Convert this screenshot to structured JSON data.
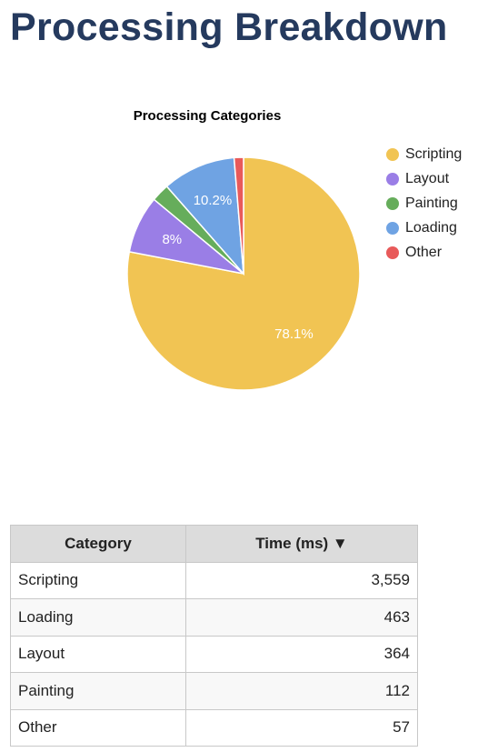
{
  "header": {
    "title": "Processing Breakdown"
  },
  "chart_data": {
    "type": "pie",
    "title": "Processing Categories",
    "categories": [
      "Scripting",
      "Layout",
      "Painting",
      "Loading",
      "Other"
    ],
    "values": [
      78.1,
      8,
      2.5,
      10.2,
      1.3
    ],
    "value_labels": [
      "78.1%",
      "8%",
      null,
      "10.2%",
      null
    ],
    "colors": [
      "#f1c453",
      "#9a7ee6",
      "#66ad5b",
      "#6fa3e3",
      "#e85a5a"
    ],
    "legend": "right"
  },
  "table": {
    "columns": [
      "Category",
      "Time (ms) ▼"
    ],
    "rows": [
      [
        "Scripting",
        "3,559"
      ],
      [
        "Loading",
        "463"
      ],
      [
        "Layout",
        "364"
      ],
      [
        "Painting",
        "112"
      ],
      [
        "Other",
        "57"
      ]
    ]
  }
}
